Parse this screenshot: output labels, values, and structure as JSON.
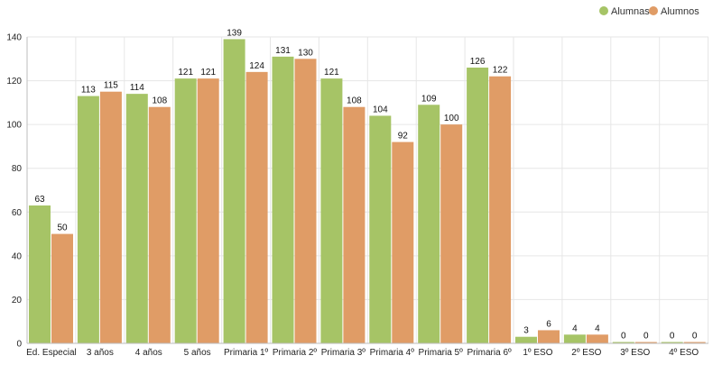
{
  "chart_data": {
    "type": "bar",
    "title": "",
    "xlabel": "",
    "ylabel": "",
    "ylim": [
      0,
      140
    ],
    "yticks": [
      0,
      20,
      40,
      60,
      80,
      100,
      120,
      140
    ],
    "grid": true,
    "legend_position": "top-right",
    "categories": [
      "Ed. Especial",
      "3 años",
      "4 años",
      "5 años",
      "Primaria 1º",
      "Primaria 2º",
      "Primaria 3º",
      "Primaria 4º",
      "Primaria 5º",
      "Primaria 6º",
      "1º ESO",
      "2º ESO",
      "3º ESO",
      "4º ESO"
    ],
    "series": [
      {
        "name": "Alumnas",
        "color": "#a6c466",
        "values": [
          63,
          113,
          114,
          121,
          139,
          131,
          121,
          104,
          109,
          126,
          3,
          4,
          0,
          0
        ]
      },
      {
        "name": "Alumnos",
        "color": "#e09c66",
        "values": [
          50,
          115,
          108,
          121,
          124,
          130,
          108,
          92,
          100,
          122,
          6,
          4,
          0,
          0
        ]
      }
    ]
  }
}
